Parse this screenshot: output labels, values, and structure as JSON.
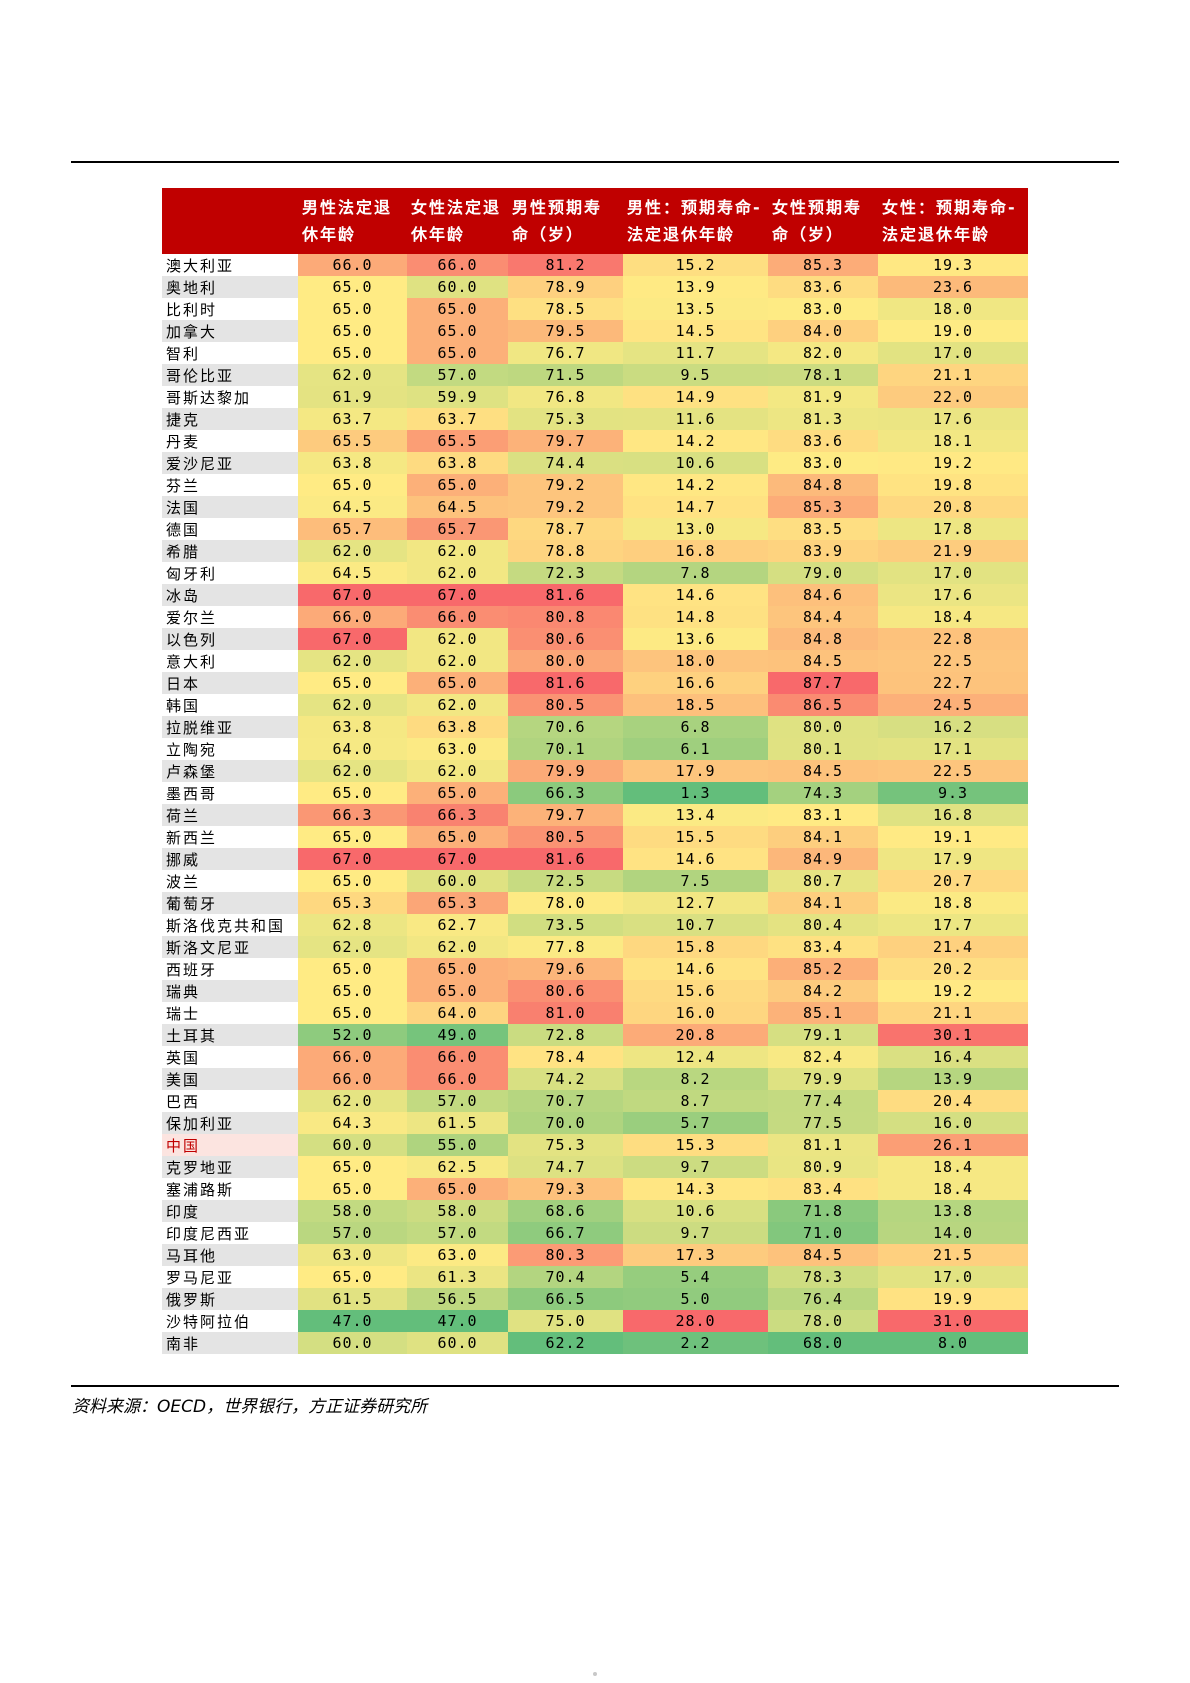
{
  "table": {
    "headers": [
      "",
      "男性法定退休年龄",
      "女性法定退休年龄",
      "男性预期寿命（岁）",
      "男性：预期寿命-法定退休年龄",
      "女性预期寿命（岁）",
      "女性：预期寿命-法定退休年龄"
    ],
    "rows": [
      [
        "澳大利亚",
        "66.0",
        "66.0",
        "81.2",
        "15.2",
        "85.3",
        "19.3"
      ],
      [
        "奥地利",
        "65.0",
        "60.0",
        "78.9",
        "13.9",
        "83.6",
        "23.6"
      ],
      [
        "比利时",
        "65.0",
        "65.0",
        "78.5",
        "13.5",
        "83.0",
        "18.0"
      ],
      [
        "加拿大",
        "65.0",
        "65.0",
        "79.5",
        "14.5",
        "84.0",
        "19.0"
      ],
      [
        "智利",
        "65.0",
        "65.0",
        "76.7",
        "11.7",
        "82.0",
        "17.0"
      ],
      [
        "哥伦比亚",
        "62.0",
        "57.0",
        "71.5",
        "9.5",
        "78.1",
        "21.1"
      ],
      [
        "哥斯达黎加",
        "61.9",
        "59.9",
        "76.8",
        "14.9",
        "81.9",
        "22.0"
      ],
      [
        "捷克",
        "63.7",
        "63.7",
        "75.3",
        "11.6",
        "81.3",
        "17.6"
      ],
      [
        "丹麦",
        "65.5",
        "65.5",
        "79.7",
        "14.2",
        "83.6",
        "18.1"
      ],
      [
        "爱沙尼亚",
        "63.8",
        "63.8",
        "74.4",
        "10.6",
        "83.0",
        "19.2"
      ],
      [
        "芬兰",
        "65.0",
        "65.0",
        "79.2",
        "14.2",
        "84.8",
        "19.8"
      ],
      [
        "法国",
        "64.5",
        "64.5",
        "79.2",
        "14.7",
        "85.3",
        "20.8"
      ],
      [
        "德国",
        "65.7",
        "65.7",
        "78.7",
        "13.0",
        "83.5",
        "17.8"
      ],
      [
        "希腊",
        "62.0",
        "62.0",
        "78.8",
        "16.8",
        "83.9",
        "21.9"
      ],
      [
        "匈牙利",
        "64.5",
        "62.0",
        "72.3",
        "7.8",
        "79.0",
        "17.0"
      ],
      [
        "冰岛",
        "67.0",
        "67.0",
        "81.6",
        "14.6",
        "84.6",
        "17.6"
      ],
      [
        "爱尔兰",
        "66.0",
        "66.0",
        "80.8",
        "14.8",
        "84.4",
        "18.4"
      ],
      [
        "以色列",
        "67.0",
        "62.0",
        "80.6",
        "13.6",
        "84.8",
        "22.8"
      ],
      [
        "意大利",
        "62.0",
        "62.0",
        "80.0",
        "18.0",
        "84.5",
        "22.5"
      ],
      [
        "日本",
        "65.0",
        "65.0",
        "81.6",
        "16.6",
        "87.7",
        "22.7"
      ],
      [
        "韩国",
        "62.0",
        "62.0",
        "80.5",
        "18.5",
        "86.5",
        "24.5"
      ],
      [
        "拉脱维亚",
        "63.8",
        "63.8",
        "70.6",
        "6.8",
        "80.0",
        "16.2"
      ],
      [
        "立陶宛",
        "64.0",
        "63.0",
        "70.1",
        "6.1",
        "80.1",
        "17.1"
      ],
      [
        "卢森堡",
        "62.0",
        "62.0",
        "79.9",
        "17.9",
        "84.5",
        "22.5"
      ],
      [
        "墨西哥",
        "65.0",
        "65.0",
        "66.3",
        "1.3",
        "74.3",
        "9.3"
      ],
      [
        "荷兰",
        "66.3",
        "66.3",
        "79.7",
        "13.4",
        "83.1",
        "16.8"
      ],
      [
        "新西兰",
        "65.0",
        "65.0",
        "80.5",
        "15.5",
        "84.1",
        "19.1"
      ],
      [
        "挪威",
        "67.0",
        "67.0",
        "81.6",
        "14.6",
        "84.9",
        "17.9"
      ],
      [
        "波兰",
        "65.0",
        "60.0",
        "72.5",
        "7.5",
        "80.7",
        "20.7"
      ],
      [
        "葡萄牙",
        "65.3",
        "65.3",
        "78.0",
        "12.7",
        "84.1",
        "18.8"
      ],
      [
        "斯洛伐克共和国",
        "62.8",
        "62.7",
        "73.5",
        "10.7",
        "80.4",
        "17.7"
      ],
      [
        "斯洛文尼亚",
        "62.0",
        "62.0",
        "77.8",
        "15.8",
        "83.4",
        "21.4"
      ],
      [
        "西班牙",
        "65.0",
        "65.0",
        "79.6",
        "14.6",
        "85.2",
        "20.2"
      ],
      [
        "瑞典",
        "65.0",
        "65.0",
        "80.6",
        "15.6",
        "84.2",
        "19.2"
      ],
      [
        "瑞士",
        "65.0",
        "64.0",
        "81.0",
        "16.0",
        "85.1",
        "21.1"
      ],
      [
        "土耳其",
        "52.0",
        "49.0",
        "72.8",
        "20.8",
        "79.1",
        "30.1"
      ],
      [
        "英国",
        "66.0",
        "66.0",
        "78.4",
        "12.4",
        "82.4",
        "16.4"
      ],
      [
        "美国",
        "66.0",
        "66.0",
        "74.2",
        "8.2",
        "79.9",
        "13.9"
      ],
      [
        "巴西",
        "62.0",
        "57.0",
        "70.7",
        "8.7",
        "77.4",
        "20.4"
      ],
      [
        "保加利亚",
        "64.3",
        "61.5",
        "70.0",
        "5.7",
        "77.5",
        "16.0"
      ],
      [
        "中国",
        "60.0",
        "55.0",
        "75.3",
        "15.3",
        "81.1",
        "26.1"
      ],
      [
        "克罗地亚",
        "65.0",
        "62.5",
        "74.7",
        "9.7",
        "80.9",
        "18.4"
      ],
      [
        "塞浦路斯",
        "65.0",
        "65.0",
        "79.3",
        "14.3",
        "83.4",
        "18.4"
      ],
      [
        "印度",
        "58.0",
        "58.0",
        "68.6",
        "10.6",
        "71.8",
        "13.8"
      ],
      [
        "印度尼西亚",
        "57.0",
        "57.0",
        "66.7",
        "9.7",
        "71.0",
        "14.0"
      ],
      [
        "马耳他",
        "63.0",
        "63.0",
        "80.3",
        "17.3",
        "84.5",
        "21.5"
      ],
      [
        "罗马尼亚",
        "65.0",
        "61.3",
        "70.4",
        "5.4",
        "78.3",
        "17.0"
      ],
      [
        "俄罗斯",
        "61.5",
        "56.5",
        "66.5",
        "5.0",
        "76.4",
        "19.9"
      ],
      [
        "沙特阿拉伯",
        "47.0",
        "47.0",
        "75.0",
        "28.0",
        "78.0",
        "31.0"
      ],
      [
        "南非",
        "60.0",
        "60.0",
        "62.2",
        "2.2",
        "68.0",
        "8.0"
      ]
    ],
    "highlight_row": "中国",
    "colors": {
      "header_bg": "#c00000",
      "header_text": "#ffffff",
      "stripe_gray": "#e4e4e4",
      "highlight_bg": "#fce4e0",
      "highlight_text": "#c00000",
      "scale_low": "#63be7b",
      "scale_mid": "#ffeb84",
      "scale_high": "#f8696b"
    }
  },
  "source": "资料来源：OECD，世界银行，方正证券研究所"
}
